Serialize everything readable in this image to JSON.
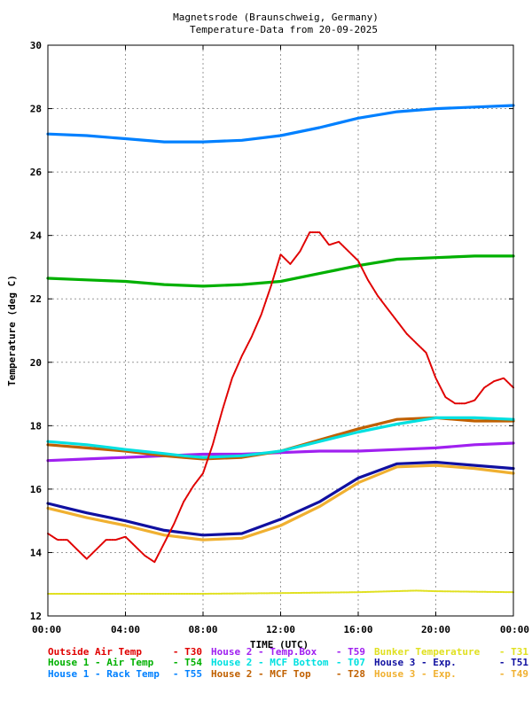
{
  "chart_data": {
    "type": "line",
    "title": "Magnetsrode (Braunschweig, Germany)",
    "subtitle": "Temperature-Data from 20-09-2025",
    "xlabel": "TIME (UTC)",
    "ylabel": "Temperature (deg C)",
    "xlim": [
      0,
      24
    ],
    "ylim": [
      12,
      30
    ],
    "xticks": [
      {
        "v": 0,
        "label": "00:00"
      },
      {
        "v": 4,
        "label": "04:00"
      },
      {
        "v": 8,
        "label": "08:00"
      },
      {
        "v": 12,
        "label": "12:00"
      },
      {
        "v": 16,
        "label": "16:00"
      },
      {
        "v": 20,
        "label": "20:00"
      },
      {
        "v": 24,
        "label": "00:00"
      }
    ],
    "yticks": [
      {
        "v": 12,
        "label": "12"
      },
      {
        "v": 14,
        "label": "14"
      },
      {
        "v": 16,
        "label": "16"
      },
      {
        "v": 18,
        "label": "18"
      },
      {
        "v": 20,
        "label": "20"
      },
      {
        "v": 22,
        "label": "22"
      },
      {
        "v": 24,
        "label": "24"
      },
      {
        "v": 26,
        "label": "26"
      },
      {
        "v": 28,
        "label": "28"
      },
      {
        "v": 30,
        "label": "30"
      }
    ],
    "grid": true,
    "legend_position": "bottom",
    "series": [
      {
        "name": "Outside Air Temp",
        "code": "T30",
        "color": "#e00000",
        "x": [
          0,
          0.5,
          1,
          1.5,
          2,
          2.5,
          3,
          3.5,
          4,
          4.5,
          5,
          5.5,
          6,
          6.5,
          7,
          7.5,
          8,
          8.5,
          9,
          9.5,
          10,
          10.5,
          11,
          11.5,
          12,
          12.5,
          13,
          13.5,
          14,
          14.5,
          15,
          15.5,
          16,
          16.5,
          17,
          17.5,
          18,
          18.5,
          19,
          19.5,
          20,
          20.5,
          21,
          21.5,
          22,
          22.5,
          23,
          23.5,
          24
        ],
        "y": [
          14.6,
          14.4,
          14.4,
          14.1,
          13.8,
          14.1,
          14.4,
          14.4,
          14.5,
          14.2,
          13.9,
          13.7,
          14.3,
          14.9,
          15.6,
          16.1,
          16.5,
          17.4,
          18.5,
          19.5,
          20.2,
          20.8,
          21.5,
          22.4,
          23.4,
          23.1,
          23.5,
          24.1,
          24.1,
          23.7,
          23.8,
          23.5,
          23.2,
          22.6,
          22.1,
          21.7,
          21.3,
          20.9,
          20.6,
          20.3,
          19.5,
          18.9,
          18.7,
          18.7,
          18.8,
          19.2,
          19.4,
          19.5,
          19.2
        ]
      },
      {
        "name": "House 1 - Air  Temp",
        "code": "T54",
        "color": "#00b000",
        "x": [
          0,
          2,
          4,
          6,
          8,
          10,
          12,
          14,
          16,
          18,
          20,
          22,
          24
        ],
        "y": [
          22.65,
          22.6,
          22.55,
          22.45,
          22.4,
          22.45,
          22.55,
          22.8,
          23.05,
          23.25,
          23.3,
          23.35,
          23.35
        ]
      },
      {
        "name": "House 1 - Rack Temp",
        "code": "T55",
        "color": "#0080ff",
        "x": [
          0,
          2,
          4,
          6,
          8,
          10,
          12,
          14,
          16,
          18,
          20,
          22,
          24
        ],
        "y": [
          27.2,
          27.15,
          27.05,
          26.95,
          26.95,
          27.0,
          27.15,
          27.4,
          27.7,
          27.9,
          28.0,
          28.05,
          28.1
        ]
      },
      {
        "name": "House 2 - Temp.Box",
        "code": "T59",
        "color": "#a020f0",
        "x": [
          0,
          2,
          4,
          6,
          8,
          10,
          12,
          14,
          16,
          18,
          20,
          22,
          24
        ],
        "y": [
          16.9,
          16.95,
          17.0,
          17.05,
          17.1,
          17.1,
          17.15,
          17.2,
          17.2,
          17.25,
          17.3,
          17.4,
          17.45
        ]
      },
      {
        "name": "House 2 - MCF Bottom",
        "code": "T07",
        "color": "#00e0e0",
        "x": [
          0,
          2,
          4,
          6,
          7,
          8,
          10,
          12,
          14,
          16,
          18,
          20,
          22,
          24
        ],
        "y": [
          17.5,
          17.4,
          17.25,
          17.12,
          17.05,
          17.0,
          17.05,
          17.2,
          17.5,
          17.8,
          18.05,
          18.25,
          18.25,
          18.2
        ]
      },
      {
        "name": "House 2 - MCF Top",
        "code": "T28",
        "color": "#c06000",
        "x": [
          0,
          2,
          4,
          6,
          7,
          8,
          10,
          12,
          14,
          16,
          18,
          20,
          22,
          24
        ],
        "y": [
          17.4,
          17.3,
          17.2,
          17.05,
          17.0,
          16.95,
          17.0,
          17.2,
          17.55,
          17.9,
          18.2,
          18.25,
          18.15,
          18.15
        ]
      },
      {
        "name": "Bunker Temperature",
        "code": "T31",
        "color": "#e0e020",
        "x": [
          0,
          4,
          8,
          12,
          16,
          19,
          20,
          24
        ],
        "y": [
          12.7,
          12.7,
          12.7,
          12.72,
          12.75,
          12.8,
          12.78,
          12.75
        ]
      },
      {
        "name": "House 3 - Exp.",
        "code": "T51",
        "color": "#1010a0",
        "x": [
          0,
          1,
          2,
          4,
          6,
          8,
          10,
          12,
          14,
          16,
          18,
          20,
          22,
          24
        ],
        "y": [
          15.55,
          15.4,
          15.25,
          15.0,
          14.7,
          14.55,
          14.6,
          15.05,
          15.6,
          16.35,
          16.8,
          16.85,
          16.75,
          16.65
        ]
      },
      {
        "name": "House 3 - Exp.",
        "code": "T49",
        "color": "#f0b030",
        "x": [
          0,
          1,
          2,
          4,
          6,
          8,
          10,
          12,
          14,
          16,
          18,
          20,
          22,
          24
        ],
        "y": [
          15.4,
          15.25,
          15.1,
          14.85,
          14.55,
          14.4,
          14.45,
          14.85,
          15.45,
          16.2,
          16.7,
          16.75,
          16.65,
          16.5
        ]
      }
    ]
  }
}
